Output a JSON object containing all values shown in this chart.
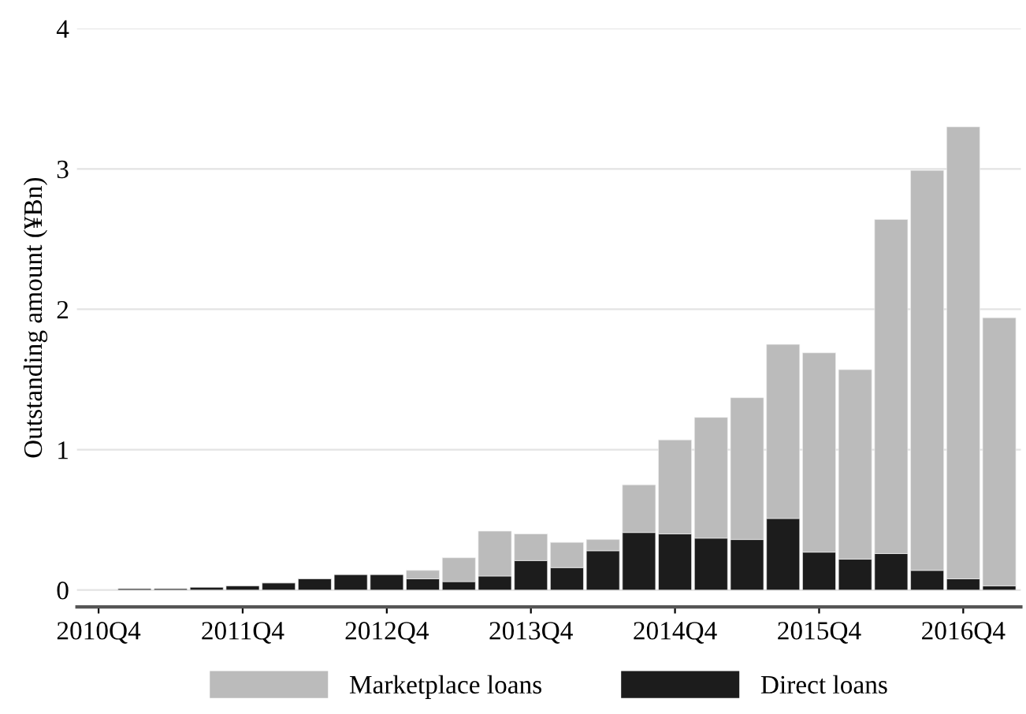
{
  "chart_data": {
    "type": "bar",
    "stacked": true,
    "ylabel": "Outstanding amount (¥Bn)",
    "categories": [
      "2010Q4",
      null,
      null,
      null,
      "2011Q4",
      null,
      null,
      null,
      "2012Q4",
      null,
      null,
      null,
      "2013Q4",
      null,
      null,
      null,
      "2014Q4",
      null,
      null,
      null,
      "2015Q4",
      null,
      null,
      null,
      "2016Q4",
      null
    ],
    "series": [
      {
        "name": "Direct loans",
        "color": "#1c1c1c",
        "values": [
          null,
          0.01,
          0.01,
          0.02,
          0.03,
          0.05,
          0.08,
          0.11,
          0.11,
          0.08,
          0.06,
          0.1,
          0.21,
          0.16,
          0.28,
          0.41,
          0.4,
          0.37,
          0.36,
          0.51,
          0.27,
          0.22,
          0.26,
          0.14,
          0.08,
          0.03
        ]
      },
      {
        "name": "Marketplace loans",
        "color": "#bbbbbb",
        "values": [
          null,
          null,
          null,
          null,
          null,
          null,
          null,
          null,
          null,
          0.06,
          0.17,
          0.32,
          0.19,
          0.18,
          0.08,
          0.34,
          0.67,
          0.86,
          1.01,
          1.24,
          1.42,
          1.35,
          2.38,
          2.85,
          3.22,
          1.91
        ]
      }
    ],
    "ylim": [
      -0.12,
      4
    ],
    "yticks": [
      0,
      1,
      2,
      3,
      4
    ],
    "grid": "y",
    "legend": "bottom"
  }
}
